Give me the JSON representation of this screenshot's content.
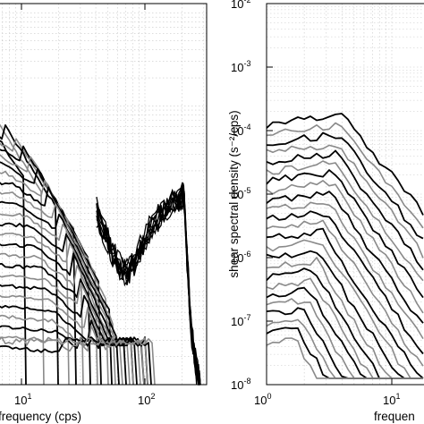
{
  "chart_data": [
    {
      "type": "line",
      "panel": "left",
      "xscale": "log",
      "xlabel": "frequency (cps)",
      "ylabel": "",
      "xlim": [
        3,
        240
      ],
      "ylim_decades_shown": 4.1,
      "xtick_labels": [
        {
          "value": 10,
          "base": "10",
          "exp": "1"
        },
        {
          "value": 100,
          "base": "10",
          "exp": "2"
        }
      ],
      "grid": true,
      "series_colors": [
        "#000000",
        "#8a8a8a"
      ],
      "series_count": 26
    },
    {
      "type": "line",
      "panel": "right",
      "xscale": "log",
      "yscale": "log",
      "xlabel": "frequen",
      "ylabel": "shear spectral density (s⁻²/cps)",
      "xlim": [
        1,
        18
      ],
      "ylim": [
        1e-08,
        0.01
      ],
      "xtick_labels": [
        {
          "value": 1,
          "base": "10",
          "exp": "0"
        },
        {
          "value": 10,
          "base": "10",
          "exp": "1"
        }
      ],
      "ytick_labels": [
        {
          "value": 1e-08,
          "base": "10",
          "exp": "-8"
        },
        {
          "value": 1e-07,
          "base": "10",
          "exp": "-7"
        },
        {
          "value": 1e-06,
          "base": "10",
          "exp": "-6"
        },
        {
          "value": 1e-05,
          "base": "10",
          "exp": "-5"
        },
        {
          "value": 0.0001,
          "base": "10",
          "exp": "-4"
        },
        {
          "value": 0.001,
          "base": "10",
          "exp": "-3"
        },
        {
          "value": 0.01,
          "base": "10",
          "exp": "-2"
        }
      ],
      "grid": true,
      "series_colors": [
        "#000000",
        "#8a8a8a"
      ],
      "series_count": 24
    }
  ]
}
